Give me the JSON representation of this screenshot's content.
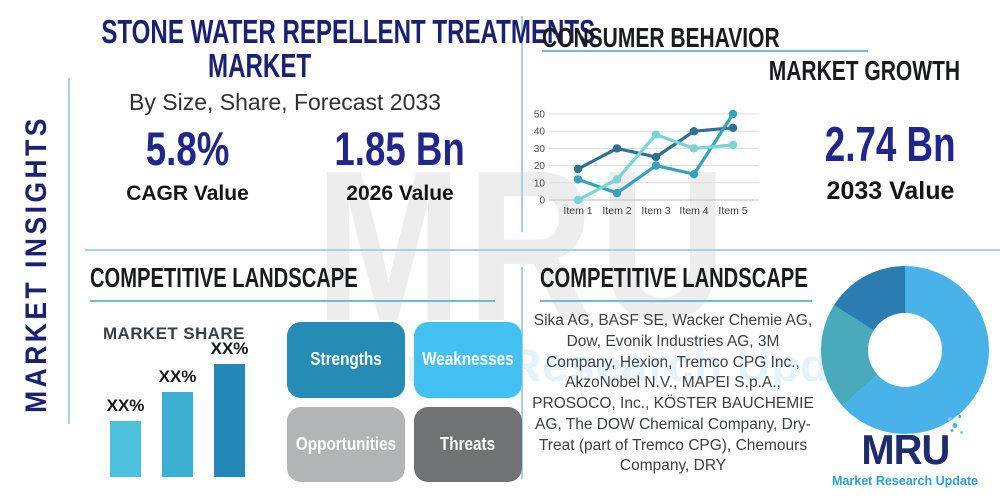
{
  "page": {
    "title_line1": "STONE WATER REPELLENT TREATMENTS",
    "title_line2": "MARKET",
    "subtitle": "By Size, Share, Forecast 2033",
    "side_label": "MARKET INSIGHTS",
    "watermark": "MRU",
    "watermark_tagline": "Market Research Update"
  },
  "stats": {
    "cagr_value": "5.8%",
    "cagr_label": "CAGR Value",
    "base_value": "1.85 Bn",
    "base_label": "2026 Value",
    "forecast_value": "2.74 Bn",
    "forecast_label": "2033 Value"
  },
  "sections": {
    "consumer_behavior": "CONSUMER BEHAVIOR",
    "market_growth": "MARKET GROWTH",
    "competitive_landscape_left": "COMPETITIVE LANDSCAPE",
    "competitive_landscape_right": "COMPETITIVE LANDSCAPE",
    "market_share": "MARKET SHARE"
  },
  "swot": [
    {
      "label": "Strengths",
      "color": "#278cb5"
    },
    {
      "label": "Weaknesses",
      "color": "#44c1f2"
    },
    {
      "label": "Opportunities",
      "color": "#b2b4b6"
    },
    {
      "label": "Threats",
      "color": "#707274"
    }
  ],
  "company_list": "Sika AG, BASF SE, Wacker Chemie AG, Dow, Evonik Industries AG, 3M Company, Hexion, Tremco CPG Inc., AkzoNobel N.V., MAPEI S.p.A., PROSOCO, Inc., KÖSTER BAUCHEMIE AG, The DOW Chemical Company, Dry-Treat (part of Tremco CPG), Chemours Company, DRY",
  "logo": {
    "name": "MRU",
    "tagline": "Market Research Update"
  },
  "theme": {
    "navy": "#1a2171",
    "stat_navy": "#20268a",
    "heading_black": "#1a1b1d",
    "divider_blue": "#a5d3e2",
    "underline_blue": "#79b7cf",
    "body_text": "#3e4144"
  },
  "chart_data": [
    {
      "id": "market-growth-line",
      "type": "line",
      "title": "CONSUMER BEHAVIOR / MARKET GROWTH",
      "x": [
        "Item 1",
        "Item 2",
        "Item 3",
        "Item 4",
        "Item 5"
      ],
      "series": [
        {
          "name": "series-dark-blue",
          "color": "#2d7195",
          "values": [
            18,
            30,
            25,
            40,
            42
          ]
        },
        {
          "name": "series-medium-teal",
          "color": "#35a3bc",
          "values": [
            12,
            4,
            20,
            15,
            50
          ]
        },
        {
          "name": "series-light-aqua",
          "color": "#79d4d6",
          "values": [
            0,
            12,
            38,
            30,
            32
          ]
        }
      ],
      "ylim": [
        0,
        50
      ],
      "yticks": [
        0,
        10,
        20,
        30,
        40,
        50
      ],
      "grid": true,
      "legend": "none"
    },
    {
      "id": "market-share-bar",
      "type": "bar",
      "title": "MARKET SHARE",
      "categories": [
        "bar-1",
        "bar-2",
        "bar-3"
      ],
      "values": [
        40,
        60,
        80
      ],
      "value_labels": [
        "XX%",
        "XX%",
        "XX%"
      ],
      "colors": [
        "#4cc1de",
        "#3cb0d2",
        "#2489b6"
      ],
      "ylim": [
        0,
        100
      ]
    },
    {
      "id": "competitive-share-donut",
      "type": "pie",
      "labels": [
        "segment-light-blue",
        "segment-teal",
        "segment-dark-blue"
      ],
      "values": [
        63.5,
        20.5,
        16
      ],
      "colors": [
        "#49b3e9",
        "#48aaba",
        "#2a7cb3"
      ]
    }
  ]
}
